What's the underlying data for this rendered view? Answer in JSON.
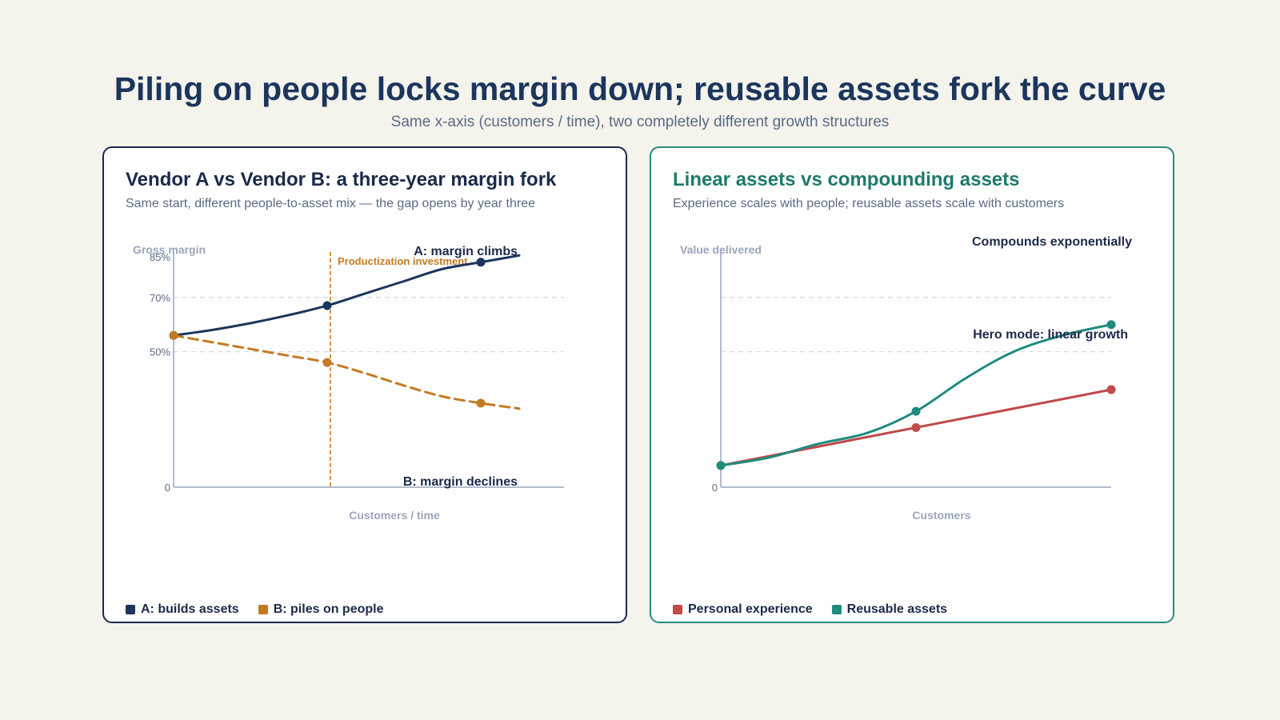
{
  "header": {
    "title": "Piling on people locks margin down; reusable assets fork the curve",
    "subtitle": "Same x-axis (customers / time), two completely different growth structures"
  },
  "colors": {
    "navy": "#1b365d",
    "orange": "#c47a22",
    "red": "#c0494a",
    "teal": "#1e8b7e",
    "axis": "#9aa6bd",
    "grid": "#d9d9d9"
  },
  "left_panel": {
    "title": "Vendor A vs Vendor B: a three-year margin fork",
    "subtitle": "Same start, different people-to-asset mix — the gap opens by year three",
    "legend": [
      "A: builds assets",
      "B: piles on people"
    ]
  },
  "right_panel": {
    "title": "Linear assets vs compounding assets",
    "subtitle": "Experience scales with people; reusable assets scale with customers",
    "legend": [
      "Personal experience",
      "Reusable assets"
    ]
  },
  "chart_data": [
    {
      "type": "line",
      "title": "Vendor A vs Vendor B: a three-year margin fork",
      "xlabel": "Customers / time",
      "ylabel": "Gross margin",
      "ylim": [
        0,
        85
      ],
      "xlim": [
        0,
        10
      ],
      "y_ticks": [
        {
          "value": 0,
          "label": "0"
        },
        {
          "value": 50,
          "label": "50%"
        },
        {
          "value": 70,
          "label": "70%"
        },
        {
          "value": 85,
          "label": "85%"
        }
      ],
      "gridlines": [
        50,
        70
      ],
      "vline": {
        "x": 4,
        "label": "Productization investment"
      },
      "series": [
        {
          "name": "A: builds assets",
          "annotation": "A: margin climbs",
          "style": "solid",
          "color": "#1b365d",
          "x": [
            0,
            1,
            2,
            3,
            4,
            5,
            6,
            7,
            8,
            9
          ],
          "y": [
            56,
            58,
            60.5,
            63.5,
            67,
            71.5,
            76,
            80.5,
            83,
            85.5
          ],
          "markers": [
            0,
            4,
            8
          ]
        },
        {
          "name": "B: piles on people",
          "annotation": "B: margin declines",
          "style": "dashed",
          "color": "#c47a22",
          "x": [
            0,
            1,
            2,
            3,
            4,
            5,
            6,
            7,
            8,
            9
          ],
          "y": [
            56,
            53.5,
            51,
            48.5,
            46,
            42,
            37.5,
            33.5,
            31,
            29
          ],
          "markers": [
            0,
            4,
            8
          ]
        }
      ]
    },
    {
      "type": "line",
      "title": "Linear assets vs compounding assets",
      "xlabel": "Customers",
      "ylabel": "Value delivered",
      "ylim": [
        0,
        85
      ],
      "xlim": [
        0,
        2
      ],
      "y_ticks": [
        {
          "value": 0,
          "label": "0"
        }
      ],
      "gridlines": [
        50,
        70
      ],
      "series": [
        {
          "name": "Personal experience",
          "annotation": "Hero mode: linear growth",
          "style": "solid",
          "color": "#c0494a",
          "x": [
            0,
            1,
            2
          ],
          "y": [
            8,
            22,
            36
          ],
          "markers": [
            0,
            1,
            2
          ]
        },
        {
          "name": "Reusable assets",
          "annotation": "Compounds exponentially",
          "style": "solid",
          "color": "#1e8b7e",
          "x": [
            0,
            0.25,
            0.5,
            0.75,
            1,
            1.25,
            1.5,
            1.75,
            2
          ],
          "y": [
            8,
            11,
            16,
            20,
            28,
            40,
            50,
            56,
            60
          ],
          "markers": [
            0,
            4,
            8
          ]
        }
      ]
    }
  ]
}
